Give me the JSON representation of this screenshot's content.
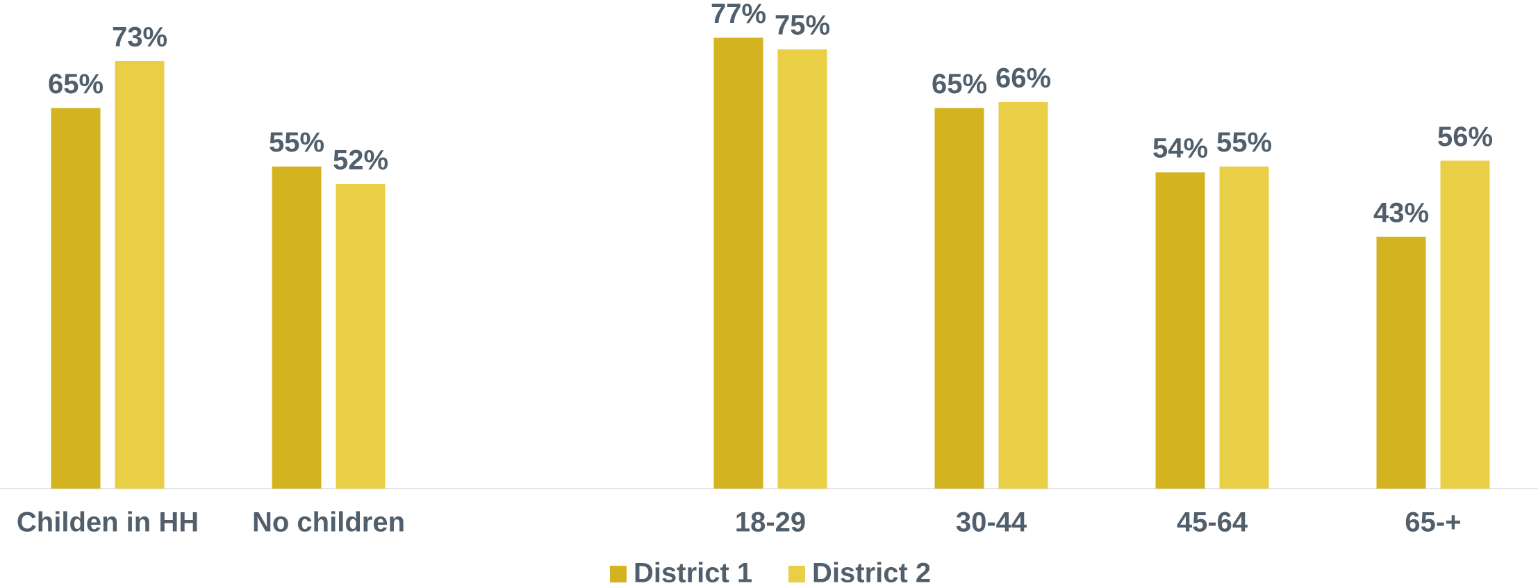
{
  "chart_data": {
    "type": "bar",
    "categories": [
      "Childen in HH",
      "No children",
      null,
      "18-29",
      "30-44",
      "45-64",
      "65-+"
    ],
    "series": [
      {
        "name": "District 1",
        "color": "#d4b320",
        "values": [
          65,
          55,
          null,
          77,
          65,
          54,
          43
        ],
        "value_labels": [
          "65%",
          "55%",
          null,
          "77%",
          "65%",
          "54%",
          "43%"
        ]
      },
      {
        "name": "District 2",
        "color": "#e8cf45",
        "values": [
          73,
          52,
          null,
          75,
          66,
          55,
          56
        ],
        "value_labels": [
          "73%",
          "52%",
          null,
          "75%",
          "66%",
          "55%",
          "56%"
        ]
      }
    ],
    "ylim": [
      0,
      80
    ],
    "legend": "bottom"
  }
}
